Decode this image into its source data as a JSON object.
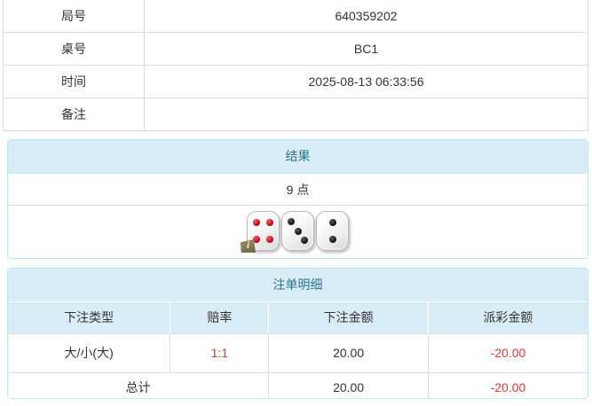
{
  "colors": {
    "panel_header_bg": "#d9edf7",
    "panel_border": "#bce8f1",
    "panel_header_text": "#31708f",
    "table_border": "#dddddd",
    "text": "#333333",
    "negative_red": "#e8363a"
  },
  "info_table": {
    "rows": [
      {
        "label": "局号",
        "value": "640359202"
      },
      {
        "label": "桌号",
        "value": "BC1"
      },
      {
        "label": "时间",
        "value": "2025-08-13 06:33:56"
      },
      {
        "label": "备注",
        "value": ""
      }
    ]
  },
  "result": {
    "title": "结果",
    "points": "9 点",
    "dice": [
      {
        "value": 4,
        "color": "red"
      },
      {
        "value": 3,
        "color": "black"
      },
      {
        "value": 2,
        "color": "black"
      }
    ],
    "info_badge": "i"
  },
  "bets": {
    "title": "注单明细",
    "columns": [
      "下注类型",
      "赔率",
      "下注金额",
      "派彩金额"
    ],
    "rows": [
      {
        "type": "大/小(大)",
        "odds": "1:1",
        "amount": "20.00",
        "payout": "-20.00"
      }
    ],
    "total": {
      "label": "总计",
      "amount": "20.00",
      "payout": "-20.00"
    }
  }
}
